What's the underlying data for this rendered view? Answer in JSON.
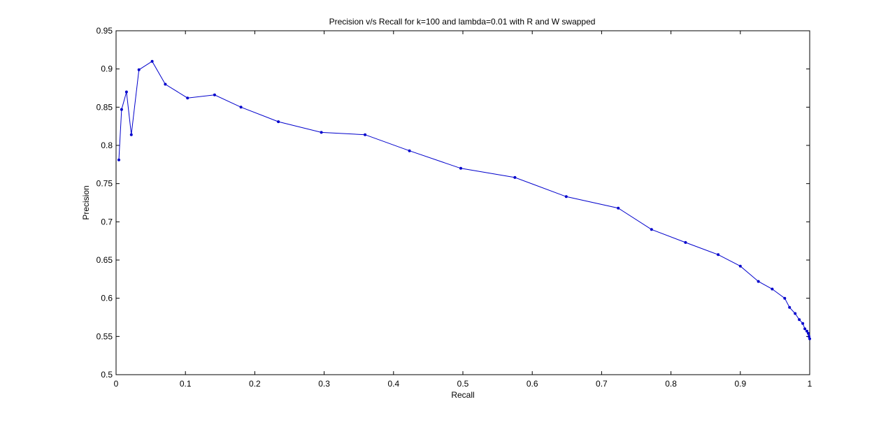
{
  "chart_data": {
    "type": "line",
    "title": "Precision v/s Recall for k=100 and lambda=0.01 with R and W swapped",
    "xlabel": "Recall",
    "ylabel": "Precision",
    "xlim": [
      0,
      1
    ],
    "ylim": [
      0.5,
      0.95
    ],
    "xticks": [
      "0",
      "0.1",
      "0.2",
      "0.3",
      "0.4",
      "0.5",
      "0.6",
      "0.7",
      "0.8",
      "0.9",
      "1"
    ],
    "yticks": [
      "0.5",
      "0.55",
      "0.6",
      "0.65",
      "0.7",
      "0.75",
      "0.8",
      "0.85",
      "0.9",
      "0.95"
    ],
    "grid": false,
    "legend": "none",
    "series": [
      {
        "color": "#0000cc",
        "marker": "dot",
        "x": [
          0.004,
          0.008,
          0.015,
          0.022,
          0.033,
          0.052,
          0.071,
          0.103,
          0.142,
          0.18,
          0.234,
          0.296,
          0.359,
          0.423,
          0.497,
          0.575,
          0.649,
          0.724,
          0.772,
          0.821,
          0.868,
          0.9,
          0.926,
          0.946,
          0.964,
          0.971,
          0.979,
          0.985,
          0.99,
          0.993,
          0.996,
          0.998,
          0.999,
          1.0
        ],
        "y": [
          0.781,
          0.847,
          0.87,
          0.814,
          0.899,
          0.91,
          0.88,
          0.862,
          0.866,
          0.85,
          0.831,
          0.817,
          0.814,
          0.793,
          0.77,
          0.758,
          0.733,
          0.718,
          0.69,
          0.673,
          0.657,
          0.642,
          0.622,
          0.612,
          0.6,
          0.588,
          0.58,
          0.572,
          0.567,
          0.56,
          0.557,
          0.554,
          0.55,
          0.547
        ]
      }
    ]
  }
}
